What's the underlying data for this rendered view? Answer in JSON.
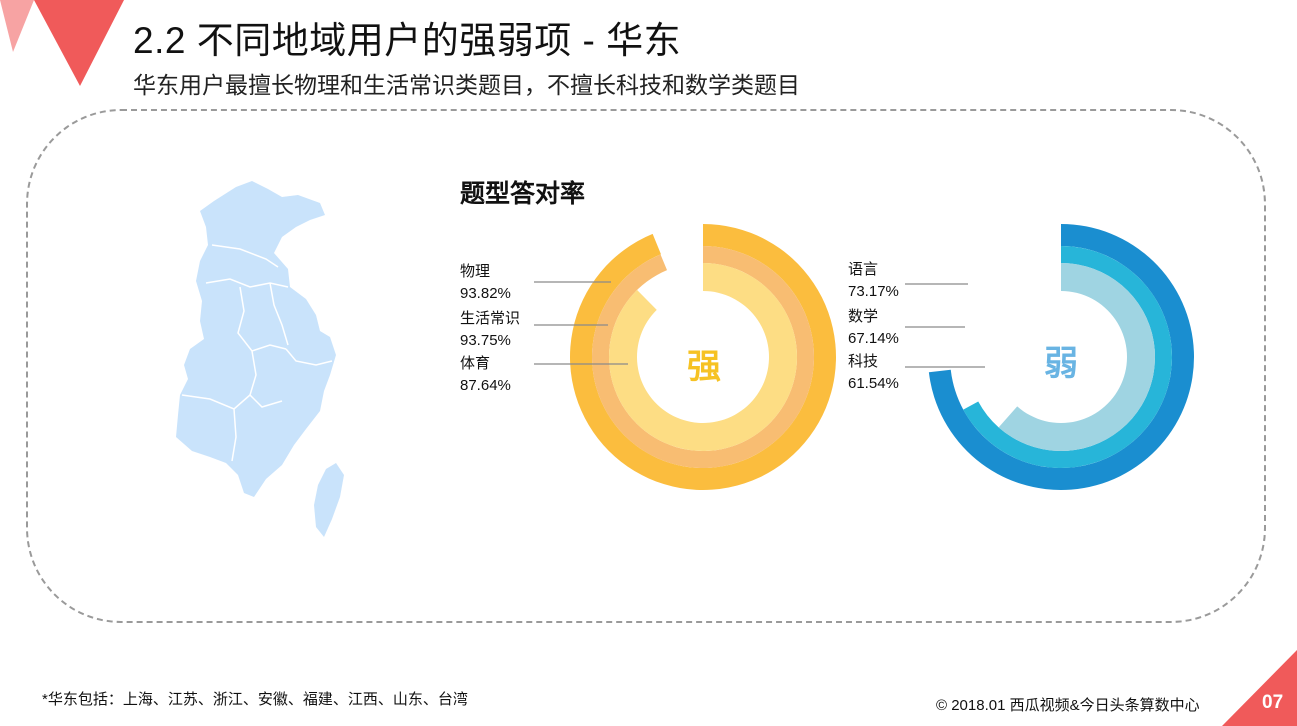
{
  "header": {
    "title": "2.2 不同地域用户的强弱项 - 华东",
    "subtitle": "华东用户最擅长物理和生活常识类题目，不擅长科技和数学类题目"
  },
  "colors": {
    "accent_red": "#f05a5a",
    "accent_pink": "#f7a3a3",
    "map_fill": "#c9e3fb",
    "strong_rings": [
      "#fbbd3e",
      "#f8bd72",
      "#fddd84"
    ],
    "weak_rings": [
      "#1a8ed0",
      "#27b5d9",
      "#9fd4e2"
    ],
    "strong_char": "#f6c223",
    "weak_char": "#69b4e3"
  },
  "icons": {
    "map": "east-china-region-map",
    "corner_decoration": "red-triangle-decoration"
  },
  "chart_data": {
    "type": "radial-bar",
    "title": "题型答对率",
    "value_unit": "%",
    "groups": [
      {
        "center_label": "强",
        "series": [
          {
            "name": "物理",
            "value": 93.82,
            "label": "93.82%"
          },
          {
            "name": "生活常识",
            "value": 93.75,
            "label": "93.75%"
          },
          {
            "name": "体育",
            "value": 87.64,
            "label": "87.64%"
          }
        ]
      },
      {
        "center_label": "弱",
        "series": [
          {
            "name": "语言",
            "value": 73.17,
            "label": "73.17%"
          },
          {
            "name": "数学",
            "value": 67.14,
            "label": "67.14%"
          },
          {
            "name": "科技",
            "value": 61.54,
            "label": "61.54%"
          }
        ]
      }
    ]
  },
  "footer": {
    "footnote": "*华东包括：上海、江苏、浙江、安徽、福建、江西、山东、台湾",
    "copyright": "© 2018.01 西瓜视频&今日头条算数中心",
    "page_number": "07"
  }
}
